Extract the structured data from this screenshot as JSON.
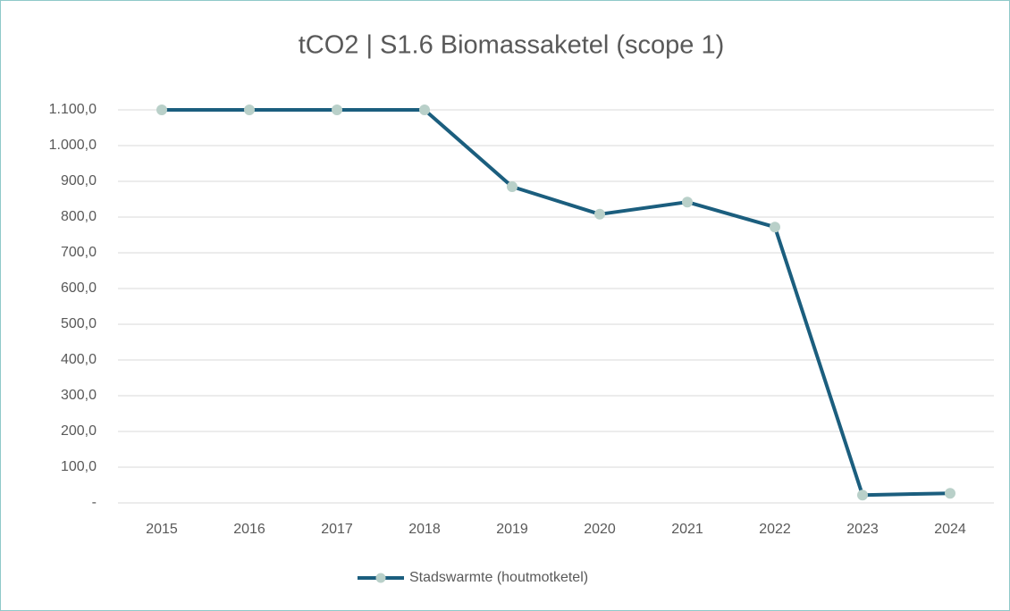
{
  "chart_data": {
    "type": "line",
    "title": "tCO2 | S1.6 Biomassaketel (scope 1)",
    "categories": [
      "2015",
      "2016",
      "2017",
      "2018",
      "2019",
      "2020",
      "2021",
      "2022",
      "2023",
      "2024"
    ],
    "series": [
      {
        "name": "Stadswarmte (houtmotketel)",
        "color": "#1b5e7e",
        "marker_color": "#b9d0c9",
        "values": [
          1100,
          1100,
          1100,
          1100,
          885,
          808,
          842,
          772,
          22,
          27
        ]
      }
    ],
    "ylim": [
      0,
      1100
    ],
    "yticks": [
      {
        "value": 0,
        "label": "-"
      },
      {
        "value": 100,
        "label": "100,0"
      },
      {
        "value": 200,
        "label": "200,0"
      },
      {
        "value": 300,
        "label": "300,0"
      },
      {
        "value": 400,
        "label": "400,0"
      },
      {
        "value": 500,
        "label": "500,0"
      },
      {
        "value": 600,
        "label": "600,0"
      },
      {
        "value": 700,
        "label": "700,0"
      },
      {
        "value": 800,
        "label": "800,0"
      },
      {
        "value": 900,
        "label": "900,0"
      },
      {
        "value": 1000,
        "label": "1.000,0"
      },
      {
        "value": 1100,
        "label": "1.100,0"
      }
    ],
    "grid": true,
    "legend": "bottom"
  }
}
